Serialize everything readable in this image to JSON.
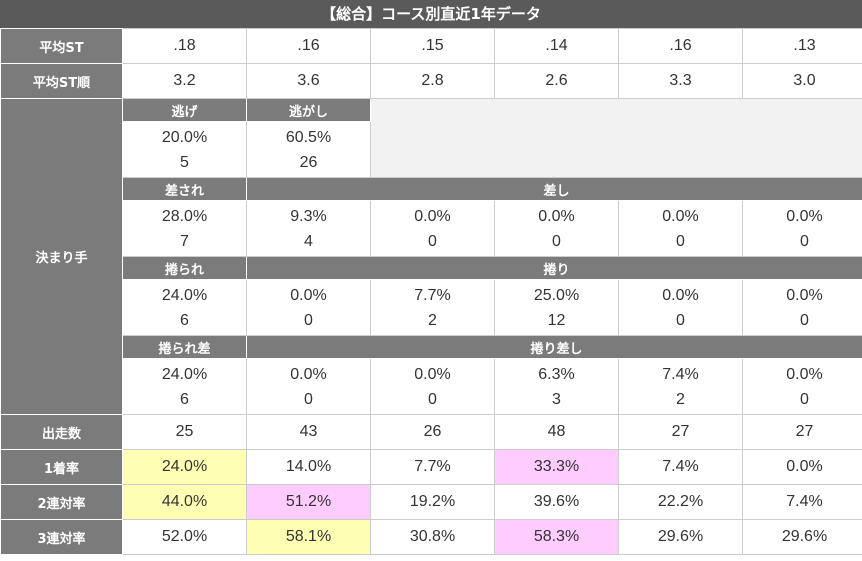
{
  "title": "【総合】コース別直近1年データ",
  "stats_top": [
    {
      "label": "平均ST",
      "values": [
        ".18",
        ".16",
        ".15",
        ".14",
        ".16",
        ".13"
      ]
    },
    {
      "label": "平均ST順",
      "values": [
        "3.2",
        "3.6",
        "2.8",
        "2.6",
        "3.3",
        "3.0"
      ]
    }
  ],
  "kimarite": {
    "label": "決まり手",
    "groups": [
      {
        "headers": [
          "逃げ",
          "逃がし"
        ],
        "rates": [
          "20.0%",
          "60.5%"
        ],
        "counts": [
          "5",
          "26"
        ]
      },
      {
        "headers": [
          "差され",
          "差し"
        ],
        "rates": [
          "28.0%",
          "9.3%",
          "0.0%",
          "0.0%",
          "0.0%",
          "0.0%"
        ],
        "counts": [
          "7",
          "4",
          "0",
          "0",
          "0",
          "0"
        ]
      },
      {
        "headers": [
          "捲られ",
          "捲り"
        ],
        "rates": [
          "24.0%",
          "0.0%",
          "7.7%",
          "25.0%",
          "0.0%",
          "0.0%"
        ],
        "counts": [
          "6",
          "0",
          "2",
          "12",
          "0",
          "0"
        ]
      },
      {
        "headers": [
          "捲られ差",
          "捲り差し"
        ],
        "rates": [
          "24.0%",
          "0.0%",
          "0.0%",
          "6.3%",
          "7.4%",
          "0.0%"
        ],
        "counts": [
          "6",
          "0",
          "0",
          "3",
          "2",
          "0"
        ]
      }
    ]
  },
  "stats_bottom": [
    {
      "label": "出走数",
      "values": [
        "25",
        "43",
        "26",
        "48",
        "27",
        "27"
      ]
    },
    {
      "label": "1着率",
      "values": [
        "24.0%",
        "14.0%",
        "7.7%",
        "33.3%",
        "7.4%",
        "0.0%"
      ],
      "highlights": [
        "#ffffb3",
        null,
        null,
        "#ffccff",
        null,
        null
      ]
    },
    {
      "label": "2連対率",
      "values": [
        "44.0%",
        "51.2%",
        "19.2%",
        "39.6%",
        "22.2%",
        "7.4%"
      ],
      "highlights": [
        "#ffffb3",
        "#ffccff",
        null,
        null,
        null,
        null
      ]
    },
    {
      "label": "3連対率",
      "values": [
        "52.0%",
        "58.1%",
        "30.8%",
        "58.3%",
        "29.6%",
        "29.6%"
      ],
      "highlights": [
        null,
        "#ffffb3",
        null,
        "#ffccff",
        null,
        null
      ]
    }
  ]
}
